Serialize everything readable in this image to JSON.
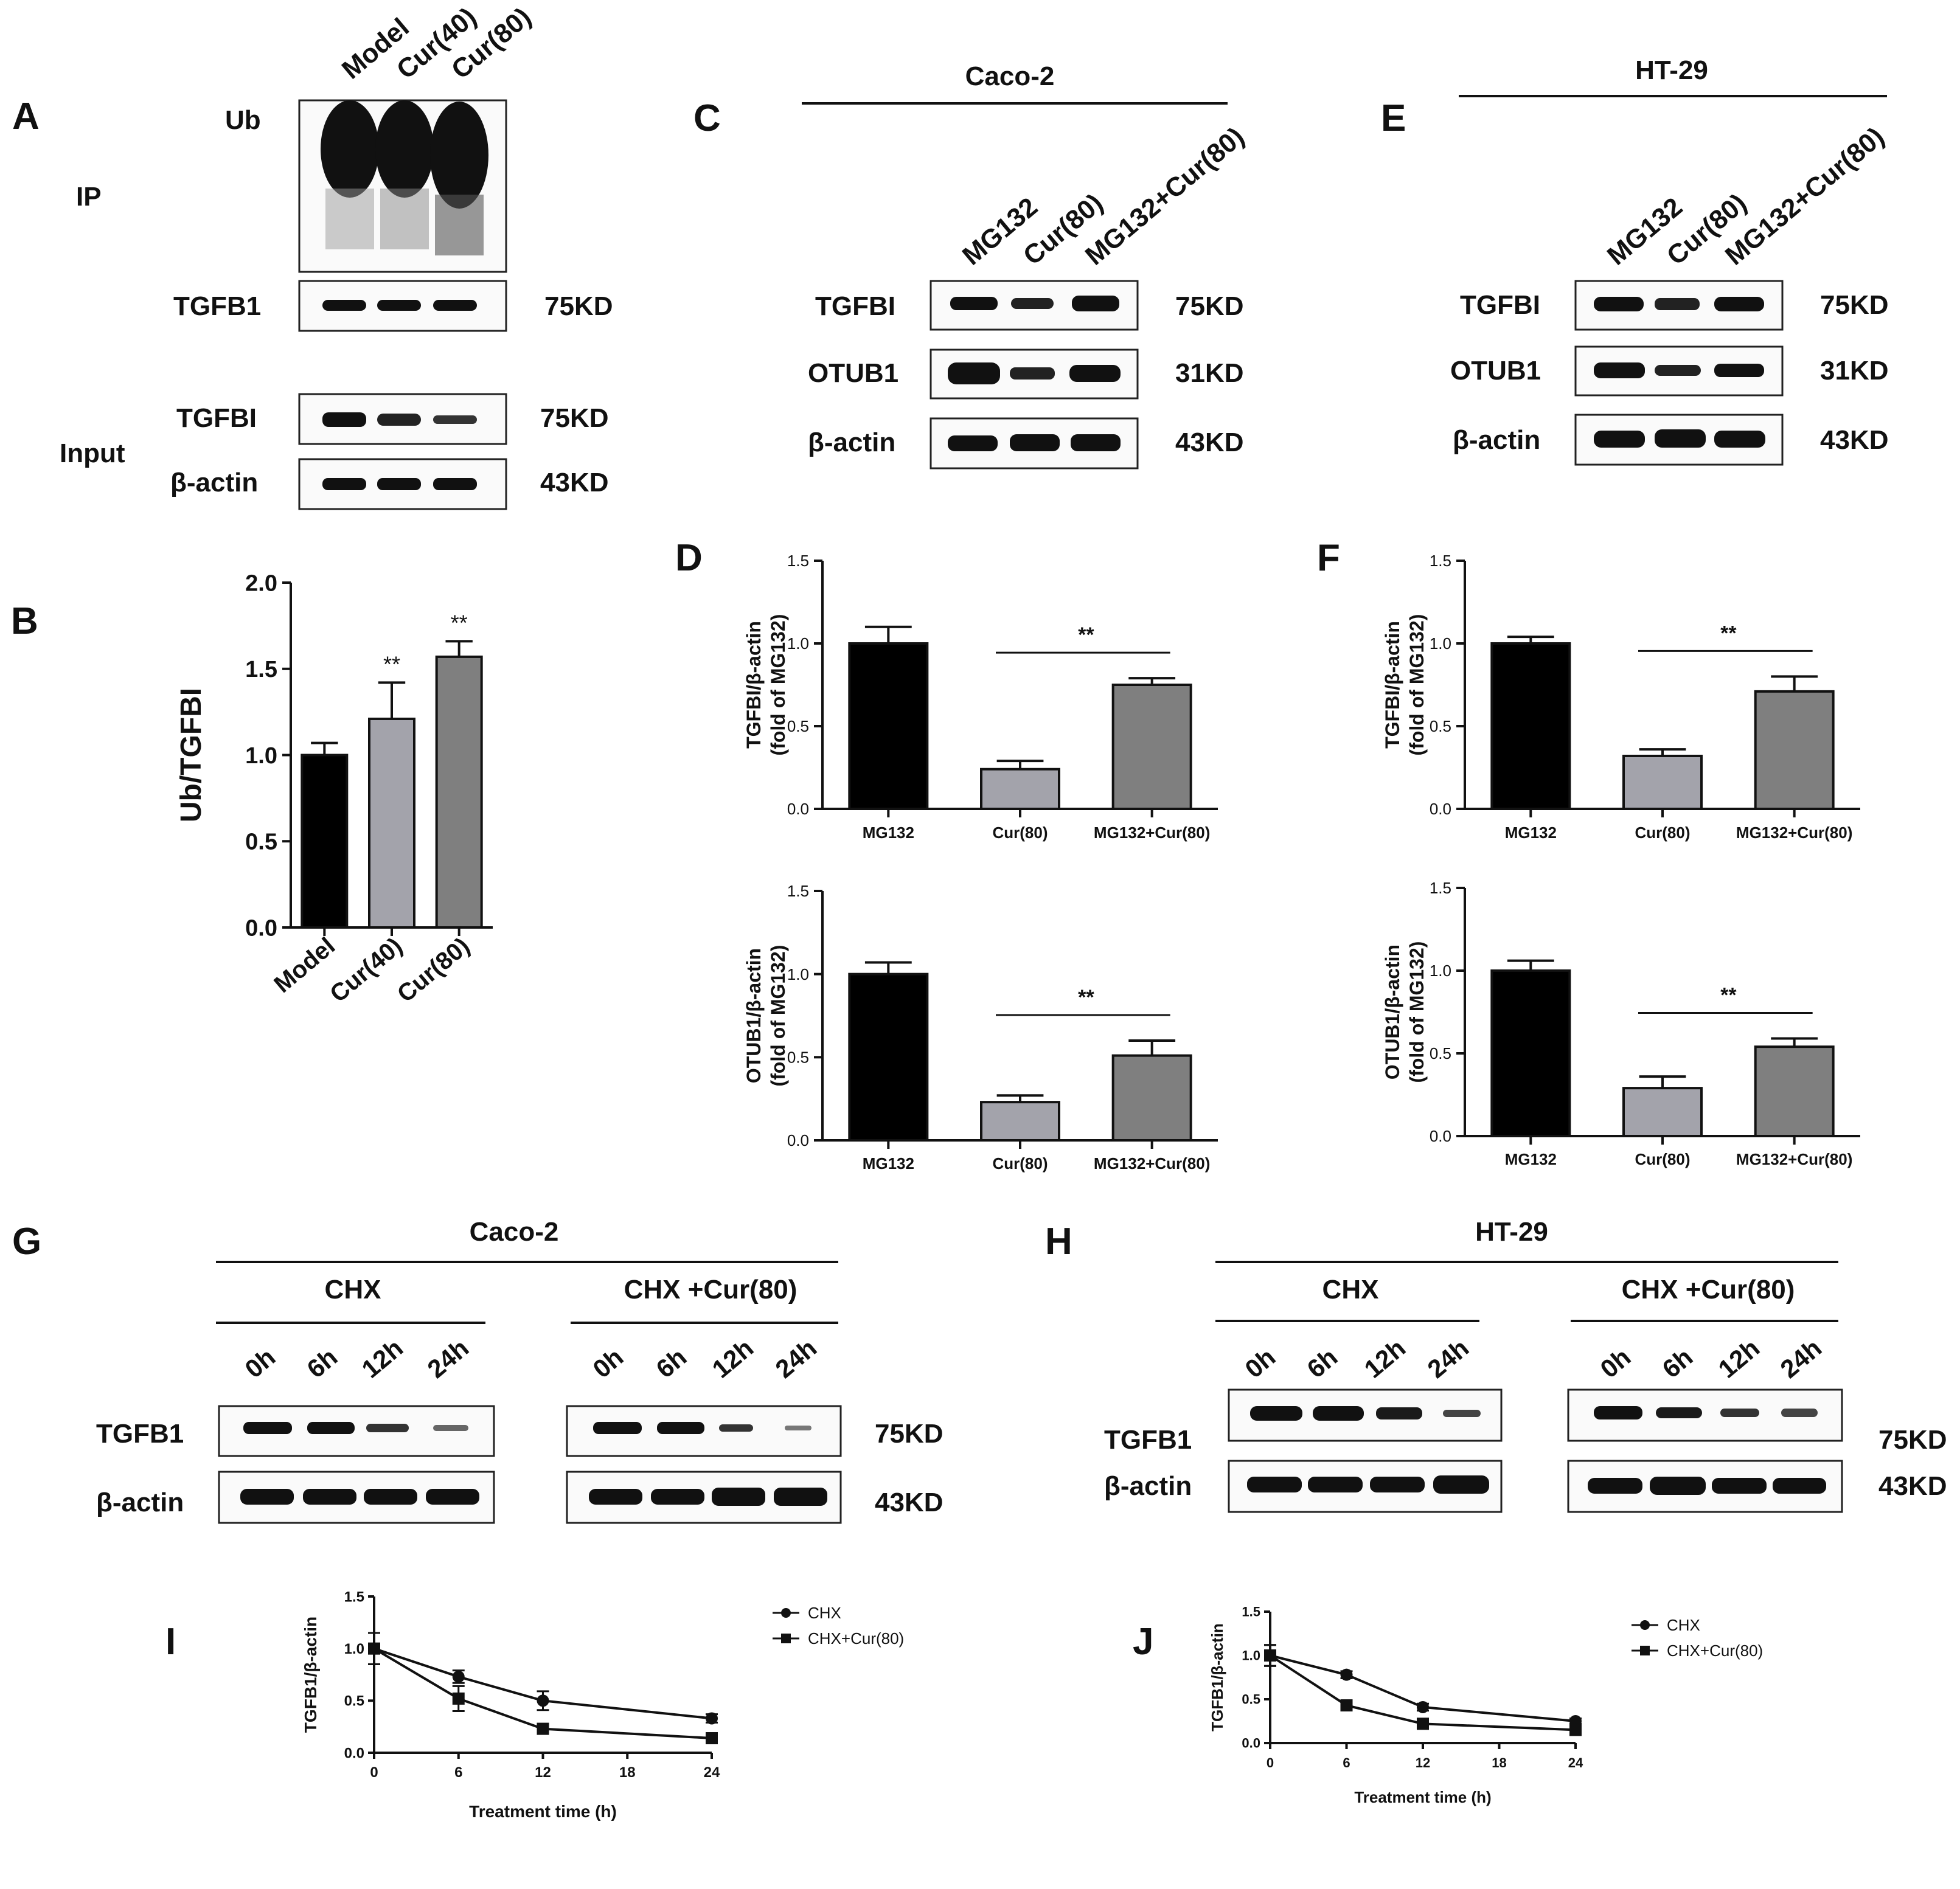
{
  "panels": {
    "A": "A",
    "B": "B",
    "C": "C",
    "D": "D",
    "E": "E",
    "F": "F",
    "G": "G",
    "H": "H",
    "I": "I",
    "J": "J"
  },
  "cell_lines": {
    "caco2": "Caco-2",
    "ht29": "HT-29"
  },
  "panel_A": {
    "lanes": [
      "Model",
      "Cur(40)",
      "Cur(80)"
    ],
    "ip_label": "IP",
    "input_label": "Input",
    "rows": [
      {
        "label": "Ub",
        "kd": ""
      },
      {
        "label": "TGFB1",
        "kd": "75KD"
      },
      {
        "label": "TGFBI",
        "kd": "75KD"
      },
      {
        "label": "β-actin",
        "kd": "43KD"
      }
    ]
  },
  "panel_C": {
    "lanes": [
      "MG132",
      "Cur(80)",
      "MG132+Cur(80)"
    ],
    "rows": [
      {
        "label": "TGFBI",
        "kd": "75KD"
      },
      {
        "label": "OTUB1",
        "kd": "31KD"
      },
      {
        "label": "β-actin",
        "kd": "43KD"
      }
    ]
  },
  "panel_E": {
    "lanes": [
      "MG132",
      "Cur(80)",
      "MG132+Cur(80)"
    ],
    "rows": [
      {
        "label": "TGFBI",
        "kd": "75KD"
      },
      {
        "label": "OTUB1",
        "kd": "31KD"
      },
      {
        "label": "β-actin",
        "kd": "43KD"
      }
    ]
  },
  "panel_G": {
    "groups": [
      "CHX",
      "CHX +Cur(80)"
    ],
    "times": [
      "0h",
      "6h",
      "12h",
      "24h"
    ],
    "rows": [
      {
        "label": "TGFB1",
        "kd": "75KD"
      },
      {
        "label": "β-actin",
        "kd": "43KD"
      }
    ]
  },
  "panel_H": {
    "groups": [
      "CHX",
      "CHX +Cur(80)"
    ],
    "times": [
      "0h",
      "6h",
      "12h",
      "24h"
    ],
    "rows": [
      {
        "label": "TGFB1",
        "kd": "75KD"
      },
      {
        "label": "β-actin",
        "kd": "43KD"
      }
    ]
  },
  "chart_data": [
    {
      "id": "B",
      "type": "bar",
      "categories": [
        "Model",
        "Cur(40)",
        "Cur(80)"
      ],
      "values": [
        1.0,
        1.21,
        1.57
      ],
      "errors": [
        0.07,
        0.21,
        0.09
      ],
      "colors": [
        "#000000",
        "#a3a3ab",
        "#7f7f7f"
      ],
      "ylabel": "Ub/TGFBI",
      "xlabel": "",
      "ylim": [
        0,
        2.0
      ],
      "yticks": [
        "0.0",
        "0.5",
        "1.0",
        "1.5",
        "2.0"
      ],
      "significance": [
        "",
        "**",
        "**"
      ]
    },
    {
      "id": "D1",
      "type": "bar",
      "categories": [
        "MG132",
        "Cur(80)",
        "MG132+Cur(80)"
      ],
      "values": [
        1.0,
        0.24,
        0.75
      ],
      "errors": [
        0.1,
        0.05,
        0.04
      ],
      "colors": [
        "#000000",
        "#a3a3ab",
        "#7f7f7f"
      ],
      "ylabel": "TGFBI/β-actin",
      "ylabel2": "(fold of MG132)",
      "xlabel": "",
      "ylim": [
        0,
        1.5
      ],
      "yticks": [
        "0.0",
        "0.5",
        "1.0",
        "1.5"
      ],
      "bracket": {
        "from": 1,
        "to": 2,
        "label": "**"
      }
    },
    {
      "id": "D2",
      "type": "bar",
      "categories": [
        "MG132",
        "Cur(80)",
        "MG132+Cur(80)"
      ],
      "values": [
        1.0,
        0.23,
        0.51
      ],
      "errors": [
        0.07,
        0.04,
        0.09
      ],
      "colors": [
        "#000000",
        "#a3a3ab",
        "#7f7f7f"
      ],
      "ylabel": "OTUB1/β-actin",
      "ylabel2": "(fold of MG132)",
      "xlabel": "",
      "ylim": [
        0,
        1.5
      ],
      "yticks": [
        "0.0",
        "0.5",
        "1.0",
        "1.5"
      ],
      "bracket": {
        "from": 1,
        "to": 2,
        "label": "**"
      }
    },
    {
      "id": "F1",
      "type": "bar",
      "categories": [
        "MG132",
        "Cur(80)",
        "MG132+Cur(80)"
      ],
      "values": [
        1.0,
        0.32,
        0.71
      ],
      "errors": [
        0.04,
        0.04,
        0.09
      ],
      "colors": [
        "#000000",
        "#a3a3ab",
        "#7f7f7f"
      ],
      "ylabel": "TGFBI/β-actin",
      "ylabel2": "(fold of MG132)",
      "xlabel": "",
      "ylim": [
        0,
        1.5
      ],
      "yticks": [
        "0.0",
        "0.5",
        "1.0",
        "1.5"
      ],
      "bracket": {
        "from": 1,
        "to": 2,
        "label": "**"
      }
    },
    {
      "id": "F2",
      "type": "bar",
      "categories": [
        "MG132",
        "Cur(80)",
        "MG132+Cur(80)"
      ],
      "values": [
        1.0,
        0.29,
        0.54
      ],
      "errors": [
        0.06,
        0.07,
        0.05
      ],
      "colors": [
        "#000000",
        "#a3a3ab",
        "#7f7f7f"
      ],
      "ylabel": "OTUB1/β-actin",
      "ylabel2": "(fold of MG132)",
      "xlabel": "",
      "ylim": [
        0,
        1.5
      ],
      "yticks": [
        "0.0",
        "0.5",
        "1.0",
        "1.5"
      ],
      "bracket": {
        "from": 1,
        "to": 2,
        "label": "**"
      }
    },
    {
      "id": "I",
      "type": "line",
      "x": [
        0,
        6,
        12,
        24
      ],
      "xticks": [
        "0",
        "6",
        "12",
        "18",
        "24"
      ],
      "xlim": [
        0,
        24
      ],
      "ylim": [
        0,
        1.5
      ],
      "yticks": [
        "0.0",
        "0.5",
        "1.0",
        "1.5"
      ],
      "xlabel": "Treatment time (h)",
      "ylabel": "TGFB1/β-actin",
      "legend": "top-right",
      "series": [
        {
          "name": "CHX",
          "marker": "circle",
          "values": [
            1.0,
            0.73,
            0.5,
            0.33
          ],
          "errors": [
            0.15,
            0.06,
            0.09,
            0.04
          ]
        },
        {
          "name": "CHX+Cur(80)",
          "marker": "square",
          "values": [
            1.0,
            0.52,
            0.23,
            0.14
          ],
          "errors": [
            0.15,
            0.12,
            0.04,
            0.04
          ]
        }
      ]
    },
    {
      "id": "J",
      "type": "line",
      "x": [
        0,
        6,
        12,
        24
      ],
      "xticks": [
        "0",
        "6",
        "12",
        "18",
        "24"
      ],
      "xlim": [
        0,
        24
      ],
      "ylim": [
        0,
        1.5
      ],
      "yticks": [
        "0.0",
        "0.5",
        "1.0",
        "1.5"
      ],
      "xlabel": "Treatment time (h)",
      "ylabel": "TGFB1/β-actin",
      "legend": "top-right",
      "series": [
        {
          "name": "CHX",
          "marker": "circle",
          "values": [
            1.0,
            0.78,
            0.41,
            0.25
          ],
          "errors": [
            0.12,
            0.04,
            0.04,
            0.03
          ]
        },
        {
          "name": "CHX+Cur(80)",
          "marker": "square",
          "values": [
            1.0,
            0.43,
            0.22,
            0.15
          ],
          "errors": [
            0.12,
            0.04,
            0.02,
            0.04
          ]
        }
      ]
    }
  ]
}
